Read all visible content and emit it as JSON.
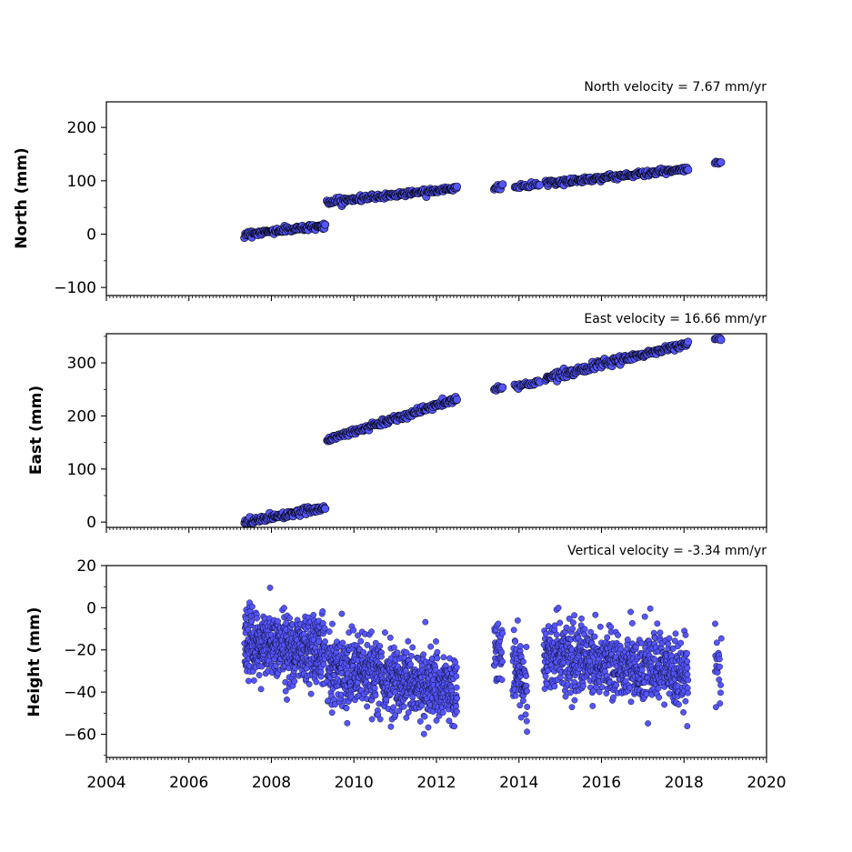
{
  "chart_data": [
    {
      "type": "scatter",
      "title": "North velocity = 7.67 mm/yr",
      "xlabel": "",
      "ylabel": "North (mm)",
      "xlim": [
        2004,
        2020
      ],
      "ylim": [
        -115,
        248
      ],
      "yticks": [
        -100,
        0,
        100,
        200
      ],
      "ytick_labels": [
        "−100",
        "0",
        "100",
        "200"
      ],
      "grid": false,
      "marker_color": "#5555ff",
      "marker_edge": "#000000",
      "segments": [
        {
          "x0": 2007.35,
          "x1": 2009.3,
          "y0": 0,
          "y1": 16,
          "noise": 2.5,
          "n": 110
        },
        {
          "x0": 2009.35,
          "x1": 2012.5,
          "y0": 60,
          "y1": 87,
          "noise": 2.5,
          "n": 170
        },
        {
          "x0": 2013.4,
          "x1": 2013.6,
          "y0": 86,
          "y1": 90,
          "noise": 2,
          "n": 10
        },
        {
          "x0": 2013.9,
          "x1": 2014.5,
          "y0": 88,
          "y1": 93,
          "noise": 2,
          "n": 22
        },
        {
          "x0": 2014.65,
          "x1": 2018.1,
          "y0": 95,
          "y1": 122,
          "noise": 2.5,
          "n": 190
        },
        {
          "x0": 2018.75,
          "x1": 2018.9,
          "y0": 133,
          "y1": 133,
          "noise": 1.5,
          "n": 6
        }
      ]
    },
    {
      "type": "scatter",
      "title": "East velocity = 16.66 mm/yr",
      "xlabel": "",
      "ylabel": "East (mm)",
      "xlim": [
        2004,
        2020
      ],
      "ylim": [
        -10,
        355
      ],
      "yticks": [
        0,
        100,
        200,
        300
      ],
      "ytick_labels": [
        "0",
        "100",
        "200",
        "300"
      ],
      "grid": false,
      "marker_color": "#5555ff",
      "marker_edge": "#000000",
      "segments": [
        {
          "x0": 2007.35,
          "x1": 2009.3,
          "y0": 0,
          "y1": 28,
          "noise": 3,
          "n": 110
        },
        {
          "x0": 2009.35,
          "x1": 2012.5,
          "y0": 155,
          "y1": 232,
          "noise": 3,
          "n": 170
        },
        {
          "x0": 2013.4,
          "x1": 2013.6,
          "y0": 250,
          "y1": 254,
          "noise": 2,
          "n": 10
        },
        {
          "x0": 2013.9,
          "x1": 2014.5,
          "y0": 256,
          "y1": 264,
          "noise": 2.5,
          "n": 22
        },
        {
          "x0": 2014.65,
          "x1": 2018.1,
          "y0": 272,
          "y1": 336,
          "noise": 3,
          "n": 190
        },
        {
          "x0": 2018.75,
          "x1": 2018.9,
          "y0": 346,
          "y1": 346,
          "noise": 1.5,
          "n": 6
        }
      ]
    },
    {
      "type": "scatter",
      "title": "Vertical velocity = -3.34 mm/yr",
      "xlabel": "",
      "ylabel": "Height (mm)",
      "xlim": [
        2004,
        2020
      ],
      "ylim": [
        -71,
        20
      ],
      "yticks": [
        -60,
        -40,
        -20,
        0,
        20
      ],
      "ytick_labels": [
        "−60",
        "−40",
        "−20",
        "0",
        "20"
      ],
      "xticks": [
        2004,
        2006,
        2008,
        2010,
        2012,
        2014,
        2016,
        2018,
        2020
      ],
      "xtick_labels": [
        "2004",
        "2006",
        "2008",
        "2010",
        "2012",
        "2014",
        "2016",
        "2018",
        "2020"
      ],
      "grid": false,
      "marker_color": "#5555ff",
      "marker_edge": "#000000",
      "segments": [
        {
          "x0": 2007.35,
          "x1": 2009.3,
          "y0": -17,
          "y1": -20,
          "noise": 8,
          "n": 550
        },
        {
          "x0": 2009.35,
          "x1": 2012.5,
          "y0": -27,
          "y1": -40,
          "noise": 8,
          "n": 800
        },
        {
          "x0": 2013.4,
          "x1": 2013.6,
          "y0": -20,
          "y1": -22,
          "noise": 7,
          "n": 40
        },
        {
          "x0": 2013.85,
          "x1": 2014.2,
          "y0": -30,
          "y1": -35,
          "noise": 9,
          "n": 90
        },
        {
          "x0": 2014.6,
          "x1": 2018.1,
          "y0": -22,
          "y1": -32,
          "noise": 8,
          "n": 800
        },
        {
          "x0": 2018.75,
          "x1": 2018.9,
          "y0": -28,
          "y1": -30,
          "noise": 9,
          "n": 20
        }
      ]
    }
  ]
}
